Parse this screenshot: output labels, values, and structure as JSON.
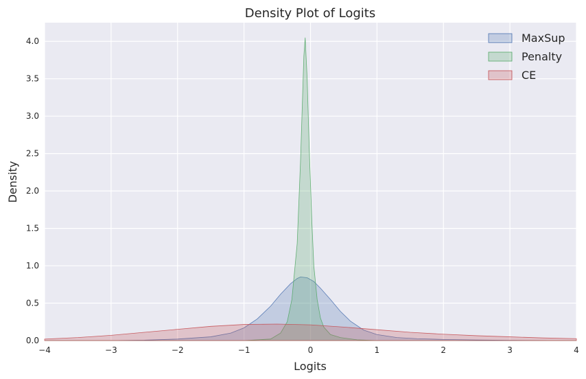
{
  "chart_data": {
    "type": "area",
    "title": "Density Plot of Logits",
    "xlabel": "Logits",
    "ylabel": "Density",
    "xlim": [
      -4,
      4
    ],
    "ylim": [
      0,
      4.25
    ],
    "xticks": [
      "−4",
      "−3",
      "−2",
      "−1",
      "0",
      "1",
      "2",
      "3",
      "4"
    ],
    "yticks": [
      "0.0",
      "0.5",
      "1.0",
      "1.5",
      "2.0",
      "2.5",
      "3.0",
      "3.5",
      "4.0"
    ],
    "grid": true,
    "legend_position": "top-right",
    "series": [
      {
        "name": "MaxSup",
        "color": "#4c72b0",
        "x": [
          -4.0,
          -3.0,
          -2.5,
          -2.0,
          -1.5,
          -1.2,
          -1.0,
          -0.8,
          -0.6,
          -0.45,
          -0.3,
          -0.2,
          -0.15,
          -0.05,
          0.05,
          0.15,
          0.3,
          0.45,
          0.6,
          0.8,
          1.0,
          1.3,
          1.6,
          2.0,
          2.5,
          3.0,
          4.0
        ],
        "y": [
          0.0,
          0.0,
          0.005,
          0.02,
          0.05,
          0.1,
          0.17,
          0.29,
          0.46,
          0.62,
          0.76,
          0.83,
          0.85,
          0.84,
          0.79,
          0.7,
          0.55,
          0.39,
          0.26,
          0.14,
          0.08,
          0.04,
          0.025,
          0.015,
          0.008,
          0.003,
          0.0
        ]
      },
      {
        "name": "Penalty",
        "color": "#55a868",
        "x": [
          -4.0,
          -1.0,
          -0.6,
          -0.45,
          -0.35,
          -0.28,
          -0.2,
          -0.15,
          -0.1,
          -0.08,
          -0.05,
          -0.02,
          0.02,
          0.05,
          0.1,
          0.15,
          0.2,
          0.3,
          0.45,
          0.7,
          1.0,
          4.0
        ],
        "y": [
          0.0,
          0.0,
          0.02,
          0.1,
          0.25,
          0.55,
          1.3,
          2.4,
          3.8,
          4.05,
          3.5,
          2.6,
          1.6,
          1.0,
          0.55,
          0.3,
          0.18,
          0.08,
          0.04,
          0.01,
          0.0,
          0.0
        ]
      },
      {
        "name": "CE",
        "color": "#c44e52",
        "x": [
          -4.0,
          -3.5,
          -3.0,
          -2.5,
          -2.0,
          -1.5,
          -1.0,
          -0.5,
          0.0,
          0.5,
          1.0,
          1.5,
          2.0,
          2.5,
          3.0,
          3.5,
          4.0
        ],
        "y": [
          0.02,
          0.04,
          0.07,
          0.11,
          0.15,
          0.19,
          0.215,
          0.22,
          0.21,
          0.18,
          0.145,
          0.11,
          0.085,
          0.065,
          0.05,
          0.035,
          0.025
        ]
      }
    ]
  }
}
